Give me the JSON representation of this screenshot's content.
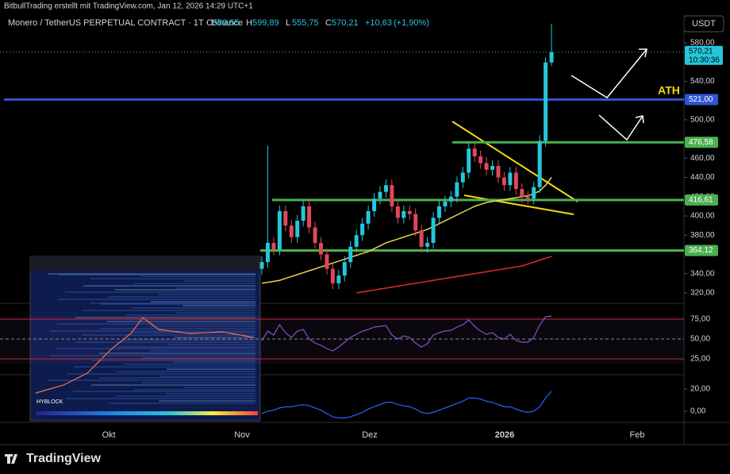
{
  "header": {
    "attribution": "BitbullTrading erstellt mit TradingView.com, Jan 12, 2026 14:29 UTC+1",
    "symbol": "Monero / TetherUS PERPETUAL CONTRACT · 1T · Binance",
    "o_prefix": "O",
    "h_prefix": "H",
    "l_prefix": "L",
    "c_prefix": "C",
    "open": {
      "value": 559.55,
      "label": "559,55"
    },
    "high": {
      "value": 599.89,
      "label": "599,89"
    },
    "low": {
      "value": 555.75,
      "label": "555,75"
    },
    "close": {
      "value": 570.21,
      "label": "570,21"
    },
    "change": {
      "value": 10.63,
      "label": "+10,63"
    },
    "change_pct": {
      "value": 1.9,
      "label": "(+1,90%)"
    }
  },
  "chart_data": {
    "type": "candlestick",
    "currency": "USDT",
    "open": [
      345,
      352,
      372,
      365,
      405,
      390,
      378,
      395,
      410,
      388,
      372,
      360,
      345,
      330,
      338,
      352,
      368,
      380,
      392,
      405,
      418,
      425,
      432,
      410,
      398,
      405,
      402,
      385,
      368,
      372,
      398,
      410,
      415,
      420,
      435,
      445,
      470,
      462,
      455,
      448,
      452,
      440,
      432,
      445,
      428,
      420,
      418,
      430,
      478,
      559.55
    ],
    "high": [
      358,
      473,
      378,
      411,
      411,
      396,
      401,
      416,
      416,
      394,
      378,
      366,
      351,
      344,
      358,
      374,
      386,
      398,
      411,
      424,
      431,
      438,
      438,
      416,
      411,
      411,
      408,
      391,
      378,
      404,
      416,
      421,
      426,
      441,
      451,
      476,
      476,
      468,
      461,
      458,
      458,
      446,
      451,
      451,
      434,
      426,
      436,
      484,
      565,
      599.89
    ],
    "low": [
      339,
      346,
      359,
      359,
      384,
      372,
      372,
      389,
      382,
      366,
      354,
      339,
      324,
      324,
      332,
      346,
      362,
      374,
      386,
      399,
      412,
      419,
      404,
      392,
      392,
      396,
      379,
      362,
      362,
      366,
      392,
      404,
      409,
      414,
      429,
      439,
      456,
      449,
      442,
      442,
      434,
      426,
      426,
      422,
      414,
      412,
      412,
      424,
      472,
      555.75
    ],
    "close": [
      352,
      372,
      365,
      405,
      390,
      378,
      395,
      410,
      388,
      372,
      360,
      345,
      330,
      338,
      352,
      368,
      380,
      392,
      405,
      418,
      425,
      432,
      410,
      398,
      405,
      402,
      385,
      368,
      372,
      398,
      410,
      415,
      420,
      435,
      445,
      470,
      462,
      455,
      448,
      452,
      440,
      432,
      445,
      428,
      420,
      418,
      430,
      478,
      559.55,
      570.21
    ],
    "up_color": "#26c6da",
    "down_color": "#e0475a",
    "ma_lines": [
      {
        "color": "#e8d44d",
        "values": [
          330,
          331,
          332,
          333,
          335,
          337,
          339,
          341,
          343,
          345,
          347,
          349,
          351,
          353,
          355,
          357,
          359,
          361,
          363,
          366,
          369,
          372,
          374,
          376,
          378,
          380,
          382,
          384,
          386,
          389,
          392,
          395,
          398,
          401,
          404,
          407,
          410,
          412,
          414,
          415,
          416,
          417,
          418,
          419,
          420,
          421,
          423,
          426,
          432,
          440
        ]
      },
      {
        "color": "#d9302c",
        "values": [
          null,
          null,
          null,
          null,
          null,
          null,
          null,
          null,
          null,
          null,
          null,
          null,
          null,
          null,
          null,
          null,
          320,
          321,
          322,
          323,
          324,
          325,
          326,
          327,
          328,
          329,
          330,
          331,
          332,
          333,
          334,
          335,
          336,
          337,
          338,
          339,
          340,
          341,
          342,
          343,
          344,
          345,
          346,
          347,
          348,
          350,
          352,
          354,
          356,
          358
        ]
      }
    ],
    "ylim": [
      310,
      608
    ],
    "yticks": [
      {
        "value": 580,
        "label": "580,00"
      },
      {
        "value": 540,
        "label": "540,00"
      },
      {
        "value": 500,
        "label": "500,00"
      },
      {
        "value": 460,
        "label": "460,00"
      },
      {
        "value": 440,
        "label": "440,00"
      },
      {
        "value": 420,
        "label": "420,00"
      },
      {
        "value": 400,
        "label": "400,00"
      },
      {
        "value": 380,
        "label": "380,00"
      },
      {
        "value": 340,
        "label": "340,00"
      },
      {
        "value": 320,
        "label": "320,00"
      }
    ],
    "levels": [
      {
        "value": 521,
        "label": "521,00",
        "color": "#2f55d4"
      },
      {
        "value": 476.58,
        "label": "476,58",
        "color": "#4caf50"
      },
      {
        "value": 416.61,
        "label": "416,61",
        "color": "#4caf50"
      },
      {
        "value": 364.12,
        "label": "364,12",
        "color": "#4caf50"
      }
    ],
    "last_price": {
      "value": 570.21,
      "label": "570,21"
    },
    "countdown": "10:30:36",
    "annotation": "ATH",
    "x_labels": [
      "Okt",
      "Nov",
      "Dez",
      "2026",
      "Feb"
    ],
    "rsi": {
      "color": "#7e57c2",
      "values": [
        48,
        60,
        55,
        68,
        58,
        52,
        60,
        62,
        50,
        45,
        42,
        38,
        35,
        40,
        46,
        52,
        56,
        60,
        62,
        65,
        66,
        67,
        55,
        50,
        54,
        52,
        45,
        40,
        44,
        55,
        58,
        60,
        61,
        65,
        68,
        74,
        66,
        60,
        56,
        58,
        52,
        50,
        56,
        48,
        46,
        46,
        52,
        68,
        78,
        79
      ],
      "ylim": [
        7,
        92
      ],
      "yticks": [
        {
          "value": 75,
          "label": "75,00"
        },
        {
          "value": 50,
          "label": "50,00"
        },
        {
          "value": 25,
          "label": "25,00"
        }
      ]
    },
    "macd": {
      "color": "#2962ff",
      "values": [
        -2,
        0,
        1,
        3,
        4,
        4,
        5,
        6,
        5,
        3,
        1,
        -2,
        -5,
        -6,
        -6,
        -5,
        -3,
        -1,
        2,
        4,
        6,
        8,
        8,
        6,
        5,
        4,
        2,
        -1,
        -2,
        -1,
        1,
        3,
        5,
        7,
        9,
        12,
        12,
        11,
        9,
        8,
        6,
        4,
        4,
        2,
        0,
        -1,
        0,
        4,
        12,
        18
      ],
      "ylim": [
        -8.6,
        30.7
      ],
      "yticks": [
        {
          "value": 20,
          "label": "20,00"
        },
        {
          "value": 0,
          "label": "0,00"
        }
      ]
    }
  },
  "inset": {
    "brand": "HYBLOCK"
  },
  "footer": {
    "brand": "TradingView"
  }
}
